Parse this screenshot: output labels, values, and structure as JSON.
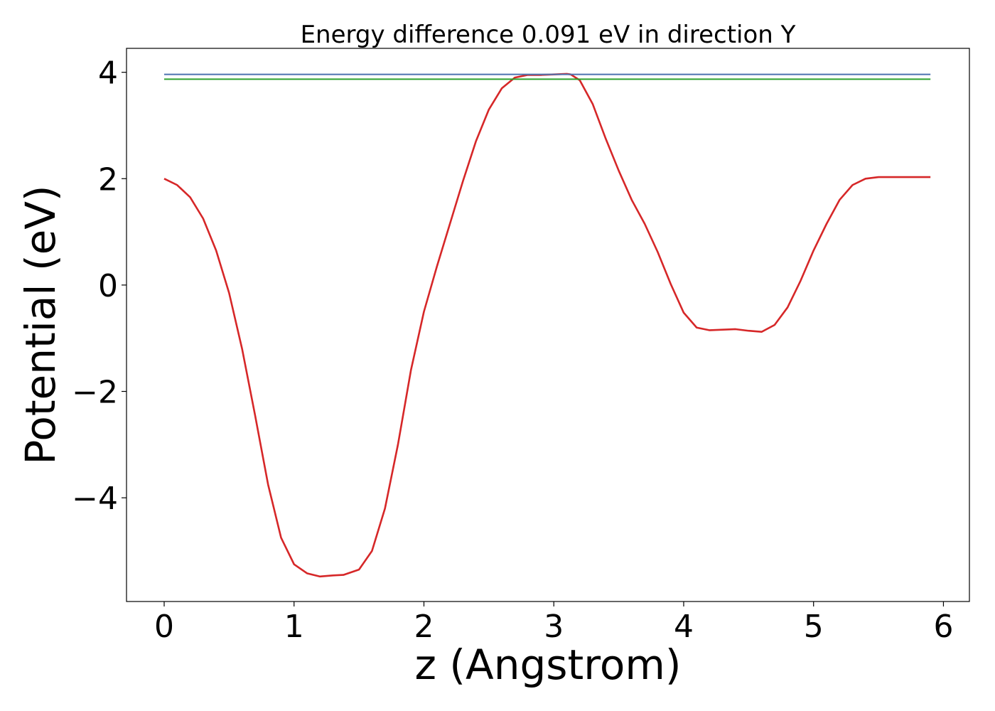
{
  "chart_data": {
    "type": "line",
    "title": "Energy difference 0.091 eV in direction Y",
    "xlabel": "z (Angstrom)",
    "ylabel": "Potential (eV)",
    "xlim": [
      -0.29,
      6.2
    ],
    "ylim": [
      -5.95,
      4.45
    ],
    "xticks": [
      0,
      1,
      2,
      3,
      4,
      5,
      6
    ],
    "xtick_labels": [
      "0",
      "1",
      "2",
      "3",
      "4",
      "5",
      "6"
    ],
    "yticks": [
      -4,
      -2,
      0,
      2,
      4
    ],
    "ytick_labels": [
      "−4",
      "−2",
      "0",
      "2",
      "4"
    ],
    "grid": false,
    "series": [
      {
        "color": "#d62728",
        "x": [
          0,
          0.1,
          0.2,
          0.3,
          0.4,
          0.5,
          0.6,
          0.7,
          0.8,
          0.9,
          1.0,
          1.1,
          1.2,
          1.3,
          1.38,
          1.5,
          1.6,
          1.7,
          1.8,
          1.9,
          2.0,
          2.1,
          2.2,
          2.3,
          2.4,
          2.5,
          2.6,
          2.7,
          2.8,
          2.9,
          3.0,
          3.1,
          3.13,
          3.2,
          3.3,
          3.4,
          3.5,
          3.6,
          3.7,
          3.8,
          3.9,
          4.0,
          4.1,
          4.2,
          4.3,
          4.4,
          4.5,
          4.6,
          4.7,
          4.8,
          4.9,
          5.0,
          5.1,
          5.2,
          5.3,
          5.4,
          5.5,
          5.6,
          5.7,
          5.8,
          5.9
        ],
        "y": [
          2.0,
          1.88,
          1.65,
          1.25,
          0.65,
          -0.15,
          -1.2,
          -2.45,
          -3.75,
          -4.75,
          -5.25,
          -5.42,
          -5.48,
          -5.46,
          -5.45,
          -5.35,
          -5.0,
          -4.2,
          -3.0,
          -1.6,
          -0.5,
          0.35,
          1.15,
          1.95,
          2.7,
          3.3,
          3.7,
          3.9,
          3.95,
          3.95,
          3.96,
          3.97,
          3.96,
          3.85,
          3.4,
          2.75,
          2.15,
          1.6,
          1.15,
          0.62,
          0.02,
          -0.52,
          -0.8,
          -0.85,
          -0.84,
          -0.83,
          -0.86,
          -0.88,
          -0.75,
          -0.42,
          0.08,
          0.65,
          1.15,
          1.6,
          1.88,
          2.0,
          2.03,
          2.03,
          2.03,
          2.03,
          2.03
        ]
      },
      {
        "color": "#4c72b0",
        "x": [
          0,
          5.9
        ],
        "y": [
          3.96,
          3.96
        ]
      },
      {
        "color": "#2ca02c",
        "x": [
          0,
          5.9
        ],
        "y": [
          3.87,
          3.87
        ]
      }
    ]
  }
}
